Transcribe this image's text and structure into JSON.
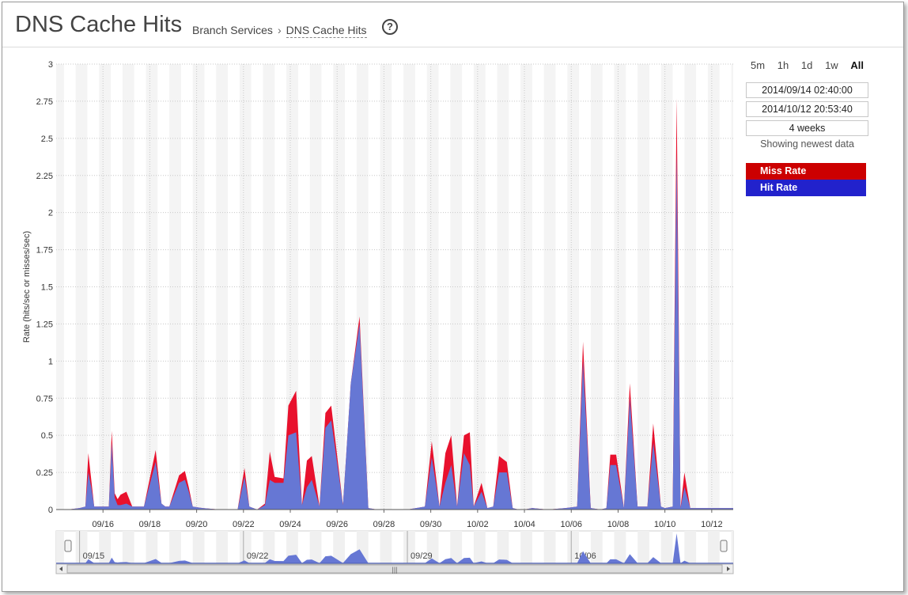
{
  "header": {
    "title": "DNS Cache Hits",
    "breadcrumb_parent": "Branch Services",
    "breadcrumb_separator": "›",
    "breadcrumb_current": "DNS Cache Hits",
    "help_glyph": "?"
  },
  "range_buttons": [
    {
      "label": "5m",
      "active": false
    },
    {
      "label": "1h",
      "active": false
    },
    {
      "label": "1d",
      "active": false
    },
    {
      "label": "1w",
      "active": false
    },
    {
      "label": "All",
      "active": true
    }
  ],
  "time_range": {
    "start": "2014/09/14 02:40:00",
    "end": "2014/10/12 20:53:40",
    "duration": "4 weeks",
    "status": "Showing newest data"
  },
  "legend": [
    {
      "label": "Miss Rate",
      "color": "#cc0000"
    },
    {
      "label": "Hit Rate",
      "color": "#2222cc"
    }
  ],
  "colors": {
    "miss_fill": "#e8112d",
    "hit_fill": "#6677d4",
    "night_band": "#f4f4f4",
    "grid": "#c8c8c8"
  },
  "chart_data": {
    "type": "area",
    "stacked": true,
    "ylabel": "Rate (hits/sec or misses/sec)",
    "ylim": [
      0,
      3
    ],
    "yticks": [
      "0",
      "0.25",
      "0.5",
      "0.75",
      "1",
      "1.25",
      "1.5",
      "1.75",
      "2",
      "2.25",
      "2.5",
      "2.75",
      "3"
    ],
    "xlim": [
      "2014-09-14",
      "2014-10-12"
    ],
    "xticks": [
      "09/16",
      "09/18",
      "09/20",
      "09/22",
      "09/24",
      "09/26",
      "09/28",
      "09/30",
      "10/02",
      "10/04",
      "10/06",
      "10/08",
      "10/10",
      "10/12"
    ],
    "x": [
      "2014-09-14 12:00",
      "2014-09-15 00:00",
      "2014-09-15 06:00",
      "2014-09-15 09:00",
      "2014-09-15 12:00",
      "2014-09-15 15:00",
      "2014-09-15 18:00",
      "2014-09-16 06:00",
      "2014-09-16 09:00",
      "2014-09-16 12:00",
      "2014-09-16 15:00",
      "2014-09-16 18:00",
      "2014-09-17 00:00",
      "2014-09-17 06:00",
      "2014-09-17 12:00",
      "2014-09-17 18:00",
      "2014-09-18 06:00",
      "2014-09-18 12:00",
      "2014-09-18 16:00",
      "2014-09-18 20:00",
      "2014-09-19 06:00",
      "2014-09-19 12:00",
      "2014-09-19 16:00",
      "2014-09-19 20:00",
      "2014-09-20 06:00",
      "2014-09-21 00:00",
      "2014-09-21 18:00",
      "2014-09-22 01:00",
      "2014-09-22 06:00",
      "2014-09-22 14:00",
      "2014-09-22 22:00",
      "2014-09-23 03:00",
      "2014-09-23 08:00",
      "2014-09-23 17:00",
      "2014-09-23 22:00",
      "2014-09-24 06:00",
      "2014-09-24 12:00",
      "2014-09-24 17:00",
      "2014-09-24 22:00",
      "2014-09-25 06:00",
      "2014-09-25 12:00",
      "2014-09-25 18:00",
      "2014-09-26 06:00",
      "2014-09-26 14:00",
      "2014-09-26 23:00",
      "2014-09-27 08:00",
      "2014-09-27 17:00",
      "2014-09-28 06:00",
      "2014-09-29 00:00",
      "2014-09-29 18:00",
      "2014-09-30 01:00",
      "2014-09-30 09:00",
      "2014-09-30 15:00",
      "2014-09-30 21:00",
      "2014-10-01 03:00",
      "2014-10-01 10:00",
      "2014-10-01 16:00",
      "2014-10-01 20:00",
      "2014-10-02 04:00",
      "2014-10-02 10:00",
      "2014-10-02 16:00",
      "2014-10-02 22:00",
      "2014-10-03 06:00",
      "2014-10-03 12:00",
      "2014-10-03 18:00",
      "2014-10-04 00:00",
      "2014-10-04 08:00",
      "2014-10-05 00:00",
      "2014-10-05 18:00",
      "2014-10-06 06:00",
      "2014-10-06 12:00",
      "2014-10-06 20:00",
      "2014-10-07 06:00",
      "2014-10-07 12:00",
      "2014-10-07 16:00",
      "2014-10-07 22:00",
      "2014-10-08 06:00",
      "2014-10-08 12:00",
      "2014-10-08 20:00",
      "2014-10-09 06:00",
      "2014-10-09 12:00",
      "2014-10-09 20:00",
      "2014-10-10 00:00",
      "2014-10-10 08:00",
      "2014-10-10 12:00",
      "2014-10-10 16:00",
      "2014-10-10 20:00",
      "2014-10-11 02:00",
      "2014-10-11 06:00",
      "2014-10-11 12:00",
      "2014-10-12 00:00",
      "2014-10-12 12:00",
      "2014-10-12 20:00"
    ],
    "series": [
      {
        "name": "Hit Rate",
        "values": [
          0,
          0.01,
          0.02,
          0.25,
          0.15,
          0.02,
          0.02,
          0.02,
          0.45,
          0.08,
          0.03,
          0.03,
          0.04,
          0.02,
          0.02,
          0.02,
          0.32,
          0.04,
          0.02,
          0.02,
          0.18,
          0.2,
          0.12,
          0.02,
          0.01,
          0,
          0,
          0.22,
          0.02,
          0.0,
          0.03,
          0.2,
          0.18,
          0.18,
          0.5,
          0.52,
          0.03,
          0.15,
          0.2,
          0.02,
          0.55,
          0.6,
          0.03,
          0.85,
          1.25,
          0.01,
          0,
          0,
          0,
          0.02,
          0.35,
          0.02,
          0.18,
          0.3,
          0.02,
          0.38,
          0.3,
          0.02,
          0.12,
          0.01,
          0.02,
          0.25,
          0.25,
          0.01,
          0,
          0,
          0.01,
          0.0,
          0.01,
          0.02,
          1.0,
          0.01,
          0,
          0.01,
          0.3,
          0.3,
          0.01,
          0.75,
          0.02,
          0.02,
          0.45,
          0.02,
          0.01,
          0.02,
          2.4,
          0.01,
          0.15,
          0.01,
          0.01,
          0.01,
          0.01,
          0.01,
          0.01
        ]
      },
      {
        "name": "Miss Rate",
        "values": [
          0,
          0.0,
          0.0,
          0.13,
          0.05,
          0.0,
          0.0,
          0.0,
          0.08,
          0.03,
          0.04,
          0.07,
          0.08,
          0.0,
          0.0,
          0.0,
          0.08,
          0.0,
          0.0,
          0.0,
          0.05,
          0.06,
          0.03,
          0.0,
          0.0,
          0,
          0,
          0.06,
          0.0,
          0.0,
          0.01,
          0.19,
          0.04,
          0.03,
          0.2,
          0.28,
          0.0,
          0.18,
          0.16,
          0.0,
          0.1,
          0.1,
          0.0,
          0.0,
          0.05,
          0.0,
          0,
          0,
          0,
          0.0,
          0.11,
          0.0,
          0.2,
          0.2,
          0.0,
          0.12,
          0.22,
          0.0,
          0.06,
          0.0,
          0.0,
          0.11,
          0.07,
          0.0,
          0,
          0,
          0.0,
          0.0,
          0.0,
          0.0,
          0.13,
          0.0,
          0,
          0.0,
          0.07,
          0.07,
          0.0,
          0.1,
          0.0,
          0.0,
          0.13,
          0.0,
          0.0,
          0.0,
          0.37,
          0.0,
          0.1,
          0.0,
          0.0,
          0.0,
          0.0,
          0.0,
          0.0
        ]
      }
    ]
  },
  "overview": {
    "labels": [
      "09/15",
      "09/22",
      "09/29",
      "10/06"
    ],
    "scroll_grip": "|||"
  }
}
